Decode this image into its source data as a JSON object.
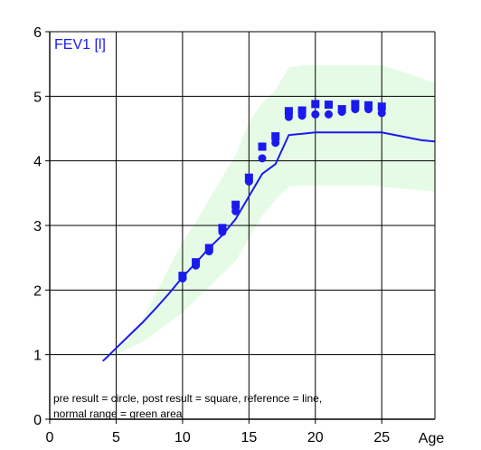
{
  "chart_data": {
    "type": "scatter",
    "title": "FEV1 [l]",
    "xlabel": "Age",
    "ylabel": "",
    "xlim": [
      0,
      29
    ],
    "ylim": [
      0,
      6
    ],
    "xticks": [
      0,
      5,
      10,
      15,
      20,
      25
    ],
    "yticks": [
      0,
      1,
      2,
      3,
      4,
      5,
      6
    ],
    "grid": true,
    "legend_note": [
      "pre result = circle, post result = square, reference = line,",
      "normal range = green area"
    ],
    "colors": {
      "series": "#1a1aee",
      "normal_range": "#e6fbe6",
      "grid": "#000000",
      "title": "#1a1aee"
    },
    "series": [
      {
        "marker": "circle",
        "points": [
          [
            10,
            2.18
          ],
          [
            11,
            2.38
          ],
          [
            12,
            2.6
          ],
          [
            13,
            2.9
          ],
          [
            14,
            3.22
          ],
          [
            15,
            3.68
          ],
          [
            16,
            4.04
          ],
          [
            17,
            4.28
          ],
          [
            18,
            4.68
          ],
          [
            19,
            4.7
          ],
          [
            20,
            4.72
          ],
          [
            21,
            4.72
          ],
          [
            22,
            4.76
          ],
          [
            23,
            4.8
          ],
          [
            24,
            4.8
          ],
          [
            25,
            4.74
          ]
        ]
      },
      {
        "marker": "square",
        "points": [
          [
            10,
            2.22
          ],
          [
            11,
            2.43
          ],
          [
            12,
            2.65
          ],
          [
            13,
            2.96
          ],
          [
            14,
            3.32
          ],
          [
            15,
            3.74
          ],
          [
            16,
            4.22
          ],
          [
            17,
            4.38
          ],
          [
            18,
            4.77
          ],
          [
            19,
            4.78
          ],
          [
            20,
            4.88
          ],
          [
            21,
            4.87
          ],
          [
            22,
            4.8
          ],
          [
            23,
            4.88
          ],
          [
            24,
            4.86
          ],
          [
            25,
            4.84
          ]
        ]
      },
      {
        "marker": "line",
        "points": [
          [
            4,
            0.9
          ],
          [
            5,
            1.1
          ],
          [
            6,
            1.3
          ],
          [
            7,
            1.5
          ],
          [
            8,
            1.72
          ],
          [
            9,
            1.95
          ],
          [
            10,
            2.2
          ],
          [
            11,
            2.42
          ],
          [
            12,
            2.65
          ],
          [
            13,
            2.85
          ],
          [
            14,
            3.1
          ],
          [
            15,
            3.45
          ],
          [
            16,
            3.8
          ],
          [
            17,
            3.95
          ],
          [
            18,
            4.4
          ],
          [
            19,
            4.42
          ],
          [
            20,
            4.44
          ],
          [
            22,
            4.44
          ],
          [
            24,
            4.44
          ],
          [
            25,
            4.44
          ],
          [
            26,
            4.4
          ],
          [
            27,
            4.36
          ],
          [
            28,
            4.32
          ],
          [
            29,
            4.3
          ]
        ]
      }
    ],
    "normal_range": {
      "x": [
        4,
        5,
        6,
        7,
        8,
        9,
        10,
        11,
        12,
        13,
        14,
        15,
        16,
        17,
        18,
        19,
        20,
        22,
        24,
        25,
        26,
        27,
        28,
        29
      ],
      "lower": [
        0.9,
        1.0,
        1.1,
        1.2,
        1.35,
        1.5,
        1.65,
        1.85,
        2.05,
        2.25,
        2.45,
        2.8,
        3.15,
        3.4,
        3.6,
        3.62,
        3.62,
        3.62,
        3.62,
        3.6,
        3.58,
        3.56,
        3.54,
        3.52
      ],
      "upper": [
        0.9,
        1.05,
        1.25,
        1.55,
        1.95,
        2.35,
        2.75,
        3.05,
        3.4,
        3.75,
        4.1,
        4.6,
        4.9,
        5.1,
        5.45,
        5.48,
        5.48,
        5.48,
        5.48,
        5.48,
        5.42,
        5.35,
        5.28,
        5.2
      ]
    }
  }
}
